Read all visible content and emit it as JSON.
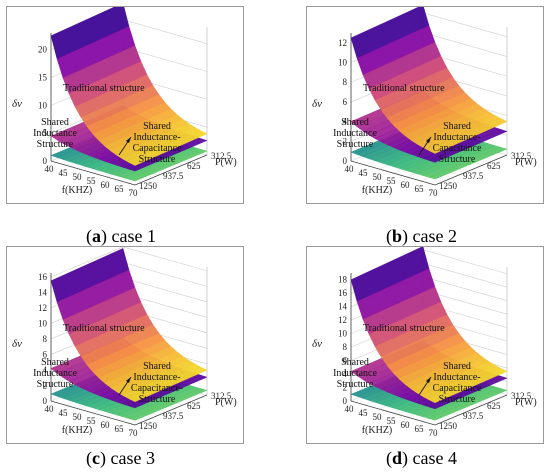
{
  "chart_data": [
    {
      "panel": "a",
      "caption_label": "a",
      "caption_text": "case 1",
      "type": "surface3d",
      "zlabel": "δv",
      "xlabel": "f(KHZ)",
      "ylabel": "P(W)",
      "z_ticks": [
        "0",
        "5",
        "10",
        "15",
        "20"
      ],
      "zlim": [
        0,
        23
      ],
      "x_ticks": [
        "40",
        "45",
        "50",
        "55",
        "60",
        "65",
        "70"
      ],
      "y_ticks": [
        "312.5",
        "625",
        "937.5",
        "1250"
      ],
      "surfaces": [
        {
          "label": "Traditional structure",
          "corner_values": {
            "f40_p312": 22.5,
            "f70_p312": 3.5,
            "f40_p1250": 23.0,
            "f70_p1250": 3.8
          }
        },
        {
          "label_lines": [
            "Shared",
            "Inductance",
            "Structure"
          ],
          "corner_values": {
            "f40_p312": 4.5,
            "f70_p312": 2.5,
            "f40_p1250": 4.6,
            "f70_p1250": 2.6
          }
        },
        {
          "label_lines": [
            "Shared",
            "Inductance-",
            "Capacitance",
            "Structure"
          ],
          "corner_values": {
            "f40_p312": 1.0,
            "f70_p312": 0.7,
            "f40_p1250": 1.0,
            "f70_p1250": 0.7
          }
        }
      ]
    },
    {
      "panel": "b",
      "caption_label": "b",
      "caption_text": "case 2",
      "type": "surface3d",
      "zlabel": "δv",
      "xlabel": "f(KHZ)",
      "ylabel": "P(W)",
      "z_ticks": [
        "0",
        "2",
        "4",
        "6",
        "8",
        "10",
        "12"
      ],
      "zlim": [
        0,
        13
      ],
      "x_ticks": [
        "40",
        "45",
        "50",
        "55",
        "60",
        "65",
        "70"
      ],
      "y_ticks": [
        "312.5",
        "625",
        "937.5",
        "1250"
      ],
      "surfaces": [
        {
          "label": "Traditional structure",
          "corner_values": {
            "f40_p312": 12.5,
            "f70_p312": 3.2,
            "f40_p1250": 12.8,
            "f70_p1250": 3.4
          }
        },
        {
          "label_lines": [
            "Shared",
            "Inductance",
            "Structure"
          ],
          "corner_values": {
            "f40_p312": 4.0,
            "f70_p312": 2.3,
            "f40_p1250": 4.1,
            "f70_p1250": 2.4
          }
        },
        {
          "label_lines": [
            "Shared",
            "Inductance-",
            "Capacitance",
            "Structure"
          ],
          "corner_values": {
            "f40_p312": 0.9,
            "f70_p312": 0.6,
            "f40_p1250": 0.9,
            "f70_p1250": 0.6
          }
        }
      ]
    },
    {
      "panel": "c",
      "caption_label": "c",
      "caption_text": "case 3",
      "type": "surface3d",
      "zlabel": "δv",
      "xlabel": "f(KHZ)",
      "ylabel": "P(W)",
      "z_ticks": [
        "0",
        "2",
        "4",
        "6",
        "8",
        "10",
        "12",
        "14",
        "16"
      ],
      "zlim": [
        0,
        16.5
      ],
      "x_ticks": [
        "40",
        "45",
        "50",
        "55",
        "60",
        "65",
        "70"
      ],
      "y_ticks": [
        "312.5",
        "625",
        "937.5",
        "1250"
      ],
      "surfaces": [
        {
          "label": "Traditional structure",
          "corner_values": {
            "f40_p312": 15.5,
            "f70_p312": 3.0,
            "f40_p1250": 15.8,
            "f70_p1250": 3.2
          }
        },
        {
          "label_lines": [
            "Shared",
            "Inductance",
            "Structure"
          ],
          "corner_values": {
            "f40_p312": 4.2,
            "f70_p312": 2.2,
            "f40_p1250": 4.3,
            "f70_p1250": 2.3
          }
        },
        {
          "label_lines": [
            "Shared",
            "Inductance-",
            "Capacitance-",
            "Structure"
          ],
          "corner_values": {
            "f40_p312": 0.9,
            "f70_p312": 0.6,
            "f40_p1250": 0.9,
            "f70_p1250": 0.6
          }
        }
      ]
    },
    {
      "panel": "d",
      "caption_label": "d",
      "caption_text": "case 4",
      "type": "surface3d",
      "zlabel": "δv",
      "xlabel": "f(KHZ)",
      "ylabel": "P(W)",
      "z_ticks": [
        "0",
        "2",
        "4",
        "6",
        "8",
        "10",
        "12",
        "14",
        "16",
        "18"
      ],
      "zlim": [
        0,
        19
      ],
      "x_ticks": [
        "40",
        "45",
        "50",
        "55",
        "60",
        "65",
        "70"
      ],
      "y_ticks": [
        "312.5",
        "625",
        "937.5",
        "1250"
      ],
      "surfaces": [
        {
          "label": "Traditional structure",
          "corner_values": {
            "f40_p312": 18.0,
            "f70_p312": 3.3,
            "f40_p1250": 18.5,
            "f70_p1250": 3.5
          }
        },
        {
          "label_lines": [
            "Shared",
            "Inductance",
            "Structure"
          ],
          "corner_values": {
            "f40_p312": 4.4,
            "f70_p312": 2.4,
            "f40_p1250": 4.5,
            "f70_p1250": 2.5
          }
        },
        {
          "label_lines": [
            "Shared",
            "Inductance-",
            "Capacitance",
            "Structure"
          ],
          "corner_values": {
            "f40_p312": 1.0,
            "f70_p312": 0.7,
            "f40_p1250": 1.0,
            "f70_p1250": 0.7
          }
        }
      ]
    }
  ]
}
